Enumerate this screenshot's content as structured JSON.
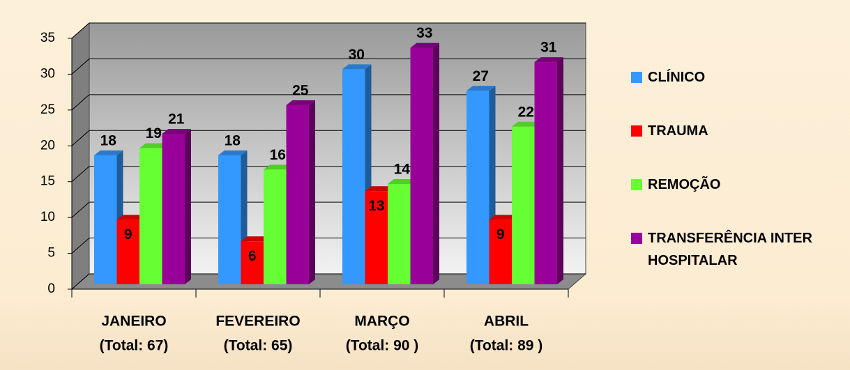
{
  "chart_data": {
    "type": "bar3d",
    "categories": [
      [
        "JANEIRO",
        "(Total: 67)"
      ],
      [
        "FEVEREIRO",
        "(Total: 65)"
      ],
      [
        "MARÇO",
        "(Total: 90 )"
      ],
      [
        "ABRIL",
        "(Total: 89 )"
      ]
    ],
    "series": [
      {
        "name": "CLÍNICO",
        "color": "#3399ff",
        "values": [
          18,
          18,
          30,
          27
        ]
      },
      {
        "name": "TRAUMA",
        "color": "#ff0000",
        "values": [
          9,
          6,
          13,
          9
        ]
      },
      {
        "name": "REMOÇÃO",
        "color": "#66ff33",
        "values": [
          19,
          16,
          14,
          22
        ]
      },
      {
        "name": "TRANSFERÊNCIA INTER HOSPITALAR",
        "color": "#990099",
        "values": [
          21,
          25,
          33,
          31
        ]
      }
    ],
    "ylim": [
      0,
      35
    ],
    "yticks": [
      0,
      5,
      10,
      15,
      20,
      25,
      30,
      35
    ],
    "grid": true,
    "legend": "right"
  }
}
